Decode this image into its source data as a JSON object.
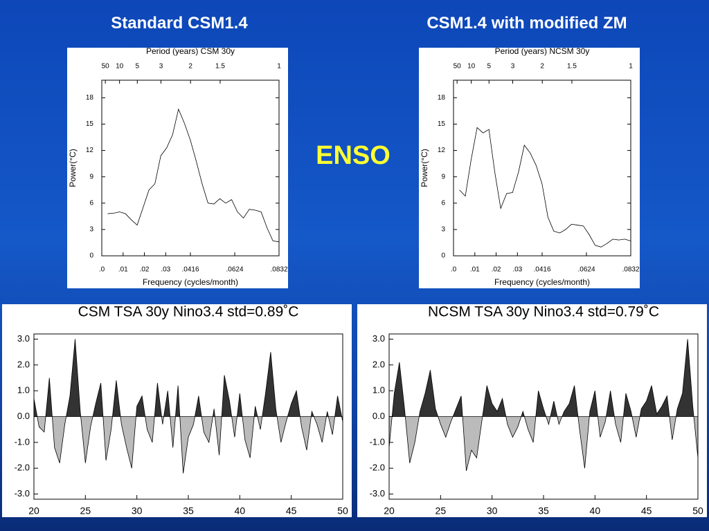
{
  "slide": {
    "headings": [
      "Standard CSM1.4",
      "CSM1.4 with modified ZM"
    ],
    "label": "ENSO"
  },
  "chart_data": [
    {
      "type": "line",
      "x2label": "Period (years) CSM 30y",
      "xlabel": "Frequency (cycles/month)",
      "ylabel": "Power(°C)",
      "color": "#000000",
      "x": [
        0.00277,
        0.00554,
        0.00831,
        0.01108,
        0.01385,
        0.01662,
        0.01939,
        0.02216,
        0.02493,
        0.0277,
        0.03047,
        0.03324,
        0.03601,
        0.03878,
        0.04155,
        0.04432,
        0.04709,
        0.04986,
        0.05263,
        0.0554,
        0.05817,
        0.06094,
        0.06371,
        0.06648,
        0.06925,
        0.07202,
        0.07479,
        0.07756,
        0.08033,
        0.0831
      ],
      "values": [
        4.8,
        4.85,
        5.0,
        4.8,
        4.1,
        3.5,
        5.5,
        7.5,
        8.2,
        11.4,
        12.3,
        13.8,
        16.7,
        15.1,
        13.2,
        10.8,
        8.2,
        6.0,
        5.9,
        6.5,
        6.0,
        6.4,
        5.0,
        4.3,
        5.3,
        5.2,
        5.0,
        3.2,
        1.7,
        1.6
      ],
      "xlim": [
        0,
        0.0832
      ],
      "ylim": [
        0,
        20
      ],
      "xticks": [
        {
          "value": 0,
          "label": ".0"
        },
        {
          "value": 0.01,
          "label": ".01"
        },
        {
          "value": 0.02,
          "label": ".02"
        },
        {
          "value": 0.03,
          "label": ".03"
        },
        {
          "value": 0.0416,
          "label": ".0416"
        },
        {
          "value": 0.0624,
          "label": ".0624"
        },
        {
          "value": 0.0832,
          "label": ".0832"
        }
      ],
      "x2ticks": [
        {
          "value": 0.00167,
          "label": "50"
        },
        {
          "value": 0.00833,
          "label": "10"
        },
        {
          "value": 0.01667,
          "label": "5"
        },
        {
          "value": 0.02778,
          "label": "3"
        },
        {
          "value": 0.04167,
          "label": "2"
        },
        {
          "value": 0.05556,
          "label": "1.5"
        },
        {
          "value": 0.0832,
          "label": "1"
        }
      ],
      "yticks": [
        0,
        3,
        6,
        9,
        12,
        15,
        18
      ]
    },
    {
      "type": "line",
      "x2label": "Period (years) NCSM 30y",
      "xlabel": "Frequency (cycles/month)",
      "ylabel": "Power(°C)",
      "color": "#000000",
      "x": [
        0.00277,
        0.00554,
        0.00831,
        0.01108,
        0.01385,
        0.01662,
        0.01939,
        0.02216,
        0.02493,
        0.0277,
        0.03047,
        0.03324,
        0.03601,
        0.03878,
        0.04155,
        0.04432,
        0.04709,
        0.04986,
        0.05263,
        0.0554,
        0.05817,
        0.06094,
        0.06371,
        0.06648,
        0.06925,
        0.07202,
        0.07479,
        0.07756,
        0.08033,
        0.0831
      ],
      "values": [
        7.5,
        6.8,
        11.0,
        14.6,
        14.0,
        14.4,
        9.5,
        5.4,
        7.1,
        7.2,
        9.5,
        12.6,
        11.7,
        10.3,
        8.2,
        4.4,
        2.8,
        2.6,
        3.0,
        3.6,
        3.5,
        3.4,
        2.4,
        1.2,
        1.0,
        1.4,
        1.9,
        1.8,
        1.9,
        1.7
      ],
      "xlim": [
        0,
        0.0832
      ],
      "ylim": [
        0,
        20
      ],
      "xticks": [
        {
          "value": 0,
          "label": ".0"
        },
        {
          "value": 0.01,
          "label": ".01"
        },
        {
          "value": 0.02,
          "label": ".02"
        },
        {
          "value": 0.03,
          "label": ".03"
        },
        {
          "value": 0.0416,
          "label": ".0416"
        },
        {
          "value": 0.0624,
          "label": ".0624"
        },
        {
          "value": 0.0832,
          "label": ".0832"
        }
      ],
      "x2ticks": [
        {
          "value": 0.00167,
          "label": "50"
        },
        {
          "value": 0.00833,
          "label": "10"
        },
        {
          "value": 0.01667,
          "label": "5"
        },
        {
          "value": 0.02778,
          "label": "3"
        },
        {
          "value": 0.04167,
          "label": "2"
        },
        {
          "value": 0.05556,
          "label": "1.5"
        },
        {
          "value": 0.0832,
          "label": "1"
        }
      ],
      "yticks": [
        0,
        3,
        6,
        9,
        12,
        15,
        18
      ]
    },
    {
      "type": "area",
      "title": "CSM TSA 30y Nino3.4 std=0.89˚C",
      "colors": {
        "positive": "#333333",
        "negative": "#bbbbbb"
      },
      "x": [
        20,
        20.5,
        21,
        21.5,
        22,
        22.5,
        23,
        23.5,
        24,
        24.5,
        25,
        25.5,
        26,
        26.5,
        27,
        27.5,
        28,
        28.5,
        29,
        29.5,
        30,
        30.5,
        31,
        31.5,
        32,
        32.5,
        33,
        33.5,
        34,
        34.5,
        35,
        35.5,
        36,
        36.5,
        37,
        37.5,
        38,
        38.5,
        39,
        39.5,
        40,
        40.5,
        41,
        41.5,
        42,
        42.5,
        43,
        43.5,
        44,
        44.5,
        45,
        45.5,
        46,
        46.5,
        47,
        47.5,
        48,
        48.5,
        49,
        49.5,
        50
      ],
      "values": [
        0.7,
        -0.4,
        -0.6,
        1.5,
        -1.2,
        -1.8,
        -0.3,
        0.8,
        3.0,
        0.2,
        -1.8,
        -0.4,
        0.5,
        1.3,
        -1.7,
        -0.5,
        1.4,
        -0.3,
        -1.2,
        -2.0,
        0.4,
        0.8,
        -0.5,
        -1.0,
        1.3,
        -0.3,
        1.0,
        -1.2,
        1.2,
        -2.2,
        -0.8,
        -0.3,
        0.8,
        -0.6,
        -1.0,
        0.3,
        -1.5,
        1.6,
        0.6,
        -0.8,
        0.9,
        -0.9,
        -1.6,
        0.4,
        -0.5,
        0.9,
        2.5,
        0.3,
        -1.0,
        -0.2,
        0.5,
        1.0,
        -0.4,
        -1.3,
        0.2,
        -0.3,
        -1.0,
        0.2,
        -0.7,
        0.8,
        -0.2
      ],
      "xlim": [
        20,
        50
      ],
      "ylim": [
        -3.2,
        3.2
      ],
      "xticks": [
        20,
        25,
        30,
        35,
        40,
        45,
        50
      ],
      "yticks": [
        {
          "value": 3,
          "label": "3.0"
        },
        {
          "value": 2,
          "label": "2.0"
        },
        {
          "value": 1,
          "label": "1.0"
        },
        {
          "value": 0,
          "label": "0.0"
        },
        {
          "value": -1,
          "label": "-1.0"
        },
        {
          "value": -2,
          "label": "-2.0"
        },
        {
          "value": -3,
          "label": "-3.0"
        }
      ]
    },
    {
      "type": "area",
      "title": "NCSM TSA 30y Nino3.4 std=0.79˚C",
      "colors": {
        "positive": "#333333",
        "negative": "#bbbbbb"
      },
      "x": [
        20,
        20.5,
        21,
        21.5,
        22,
        22.5,
        23,
        23.5,
        24,
        24.5,
        25,
        25.5,
        26,
        26.5,
        27,
        27.5,
        28,
        28.5,
        29,
        29.5,
        30,
        30.5,
        31,
        31.5,
        32,
        32.5,
        33,
        33.5,
        34,
        34.5,
        35,
        35.5,
        36,
        36.5,
        37,
        37.5,
        38,
        38.5,
        39,
        39.5,
        40,
        40.5,
        41,
        41.5,
        42,
        42.5,
        43,
        43.5,
        44,
        44.5,
        45,
        45.5,
        46,
        46.5,
        47,
        47.5,
        48,
        48.5,
        49,
        49.5,
        50
      ],
      "values": [
        -1.2,
        0.9,
        2.1,
        0.3,
        -1.8,
        -1.0,
        0.2,
        0.9,
        1.8,
        0.3,
        -0.3,
        -0.8,
        -0.2,
        0.3,
        0.8,
        -2.1,
        -1.3,
        -1.6,
        -0.2,
        1.2,
        0.5,
        0.2,
        0.7,
        -0.3,
        -0.8,
        -0.4,
        0.2,
        -0.5,
        -1.0,
        1.0,
        0.3,
        -0.3,
        0.6,
        -0.3,
        0.2,
        0.5,
        1.2,
        -0.5,
        -2.0,
        0.2,
        1.0,
        -0.8,
        -0.2,
        1.0,
        -0.3,
        -1.0,
        0.9,
        0.2,
        -0.8,
        0.3,
        0.6,
        1.2,
        0.1,
        0.4,
        0.8,
        -0.9,
        0.3,
        0.9,
        3.0,
        0.4,
        -1.6
      ],
      "xlim": [
        20,
        50
      ],
      "ylim": [
        -3.2,
        3.2
      ],
      "xticks": [
        20,
        25,
        30,
        35,
        40,
        45,
        50
      ],
      "yticks": [
        {
          "value": 3,
          "label": "3.0"
        },
        {
          "value": 2,
          "label": "2.0"
        },
        {
          "value": 1,
          "label": "1.0"
        },
        {
          "value": 0,
          "label": "0.0"
        },
        {
          "value": -1,
          "label": "-1.0"
        },
        {
          "value": -2,
          "label": "-2.0"
        },
        {
          "value": -3,
          "label": "-3.0"
        }
      ]
    }
  ]
}
